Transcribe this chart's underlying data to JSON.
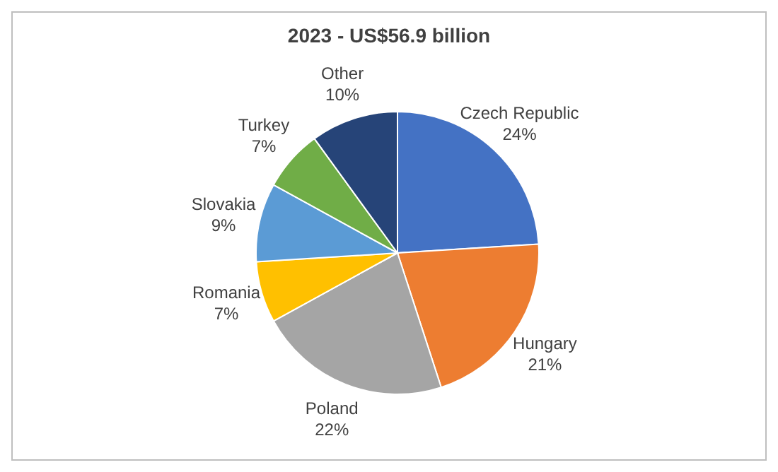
{
  "chart_data": {
    "type": "pie",
    "title": "2023 - US$56.9 billion",
    "categories": [
      "Czech Republic",
      "Hungary",
      "Poland",
      "Romania",
      "Slovakia",
      "Turkey",
      "Other"
    ],
    "values": [
      24,
      21,
      22,
      7,
      9,
      7,
      10
    ],
    "value_labels": [
      "24%",
      "21%",
      "22%",
      "7%",
      "9%",
      "7%",
      "10%"
    ],
    "colors": [
      "#4472c4",
      "#ed7d31",
      "#a5a5a5",
      "#ffc000",
      "#5b9bd5",
      "#70ad47",
      "#264478"
    ],
    "legend": false
  }
}
